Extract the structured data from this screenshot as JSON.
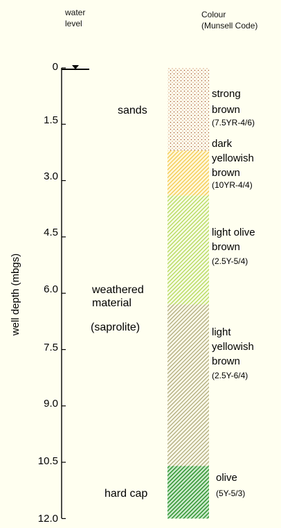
{
  "header": {
    "water_level": [
      "water",
      "level"
    ],
    "colour": [
      "Colour",
      "(Munsell Code)"
    ]
  },
  "axis": {
    "title": "well depth (mbgs)",
    "ticks": [
      {
        "value": 0,
        "label": "0"
      },
      {
        "value": 1.5,
        "label": "1.5"
      },
      {
        "value": 3.0,
        "label": "3.0"
      },
      {
        "value": 4.5,
        "label": "4.5"
      },
      {
        "value": 6.0,
        "label": "6.0"
      },
      {
        "value": 7.5,
        "label": "7.5"
      },
      {
        "value": 9.0,
        "label": "9.0"
      },
      {
        "value": 10.5,
        "label": "10.5"
      },
      {
        "value": 12.0,
        "label": "12.0"
      }
    ]
  },
  "water_level_marker": {
    "depth": 0,
    "icon": "water-table-triangle-icon"
  },
  "lithology": [
    {
      "lines": [
        "sands"
      ]
    },
    {
      "lines": [
        "weathered",
        "material"
      ]
    },
    {
      "lines": [
        "(saprolite)"
      ]
    },
    {
      "lines": [
        "hard cap"
      ]
    }
  ],
  "colour_units": [
    {
      "top": 0,
      "bottom": 2.2,
      "pattern": "stipple",
      "color": "#a0522d",
      "name": [
        "strong",
        "brown"
      ],
      "code": "(7.5YR-4/6)"
    },
    {
      "top": 2.2,
      "bottom": 3.4,
      "pattern": "hatch",
      "color": "#f0c030",
      "name": [
        "dark",
        "yellowish",
        "brown"
      ],
      "code": "(10YR-4/4)"
    },
    {
      "top": 3.4,
      "bottom": 6.3,
      "pattern": "hatch",
      "color": "#a8d23c",
      "name": [
        "light olive",
        "brown"
      ],
      "code": "(2.5Y-5/4)"
    },
    {
      "top": 6.3,
      "bottom": 10.6,
      "pattern": "hatch",
      "color": "#8c8646",
      "name": [
        "light",
        "yellowish",
        "brown"
      ],
      "code": "(2.5Y-6/4)"
    },
    {
      "top": 10.6,
      "bottom": 12.0,
      "pattern": "hatch-dense",
      "color": "#1e8a1e",
      "name": [
        "olive"
      ],
      "code": "(5Y-5/3)"
    }
  ]
}
